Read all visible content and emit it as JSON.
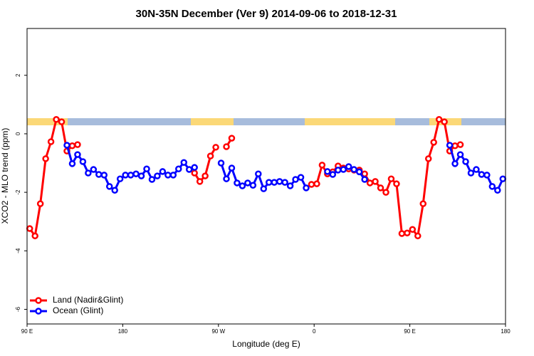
{
  "chart_data": {
    "type": "line",
    "title": "30N-35N December (Ver 9)   2014-09-06 to 2018-12-31",
    "x_label": "Longitude (deg E)",
    "y_label": "XCO2 - MLO trend (ppm)",
    "x": [
      92.5,
      97.5,
      102.5,
      107.5,
      112.5,
      117.5,
      122.5,
      127.5,
      132.5,
      137.5,
      142.5,
      147.5,
      152.5,
      157.5,
      162.5,
      167.5,
      172.5,
      177.5,
      182.5,
      187.5,
      192.5,
      197.5,
      202.5,
      207.5,
      212.5,
      217.5,
      222.5,
      227.5,
      232.5,
      237.5,
      242.5,
      247.5,
      252.5,
      257.5,
      262.5,
      267.5,
      272.5,
      277.5,
      282.5,
      287.5,
      292.5,
      297.5,
      302.5,
      307.5,
      312.5,
      317.5,
      322.5,
      327.5,
      332.5,
      337.5,
      342.5,
      347.5,
      352.5,
      357.5,
      362.5,
      367.5,
      372.5,
      377.5,
      382.5,
      387.5,
      392.5,
      397.5,
      402.5,
      407.5,
      412.5,
      417.5,
      422.5,
      427.5,
      432.5,
      437.5,
      442.5,
      447.5,
      452.5,
      457.5,
      462.5,
      467.5,
      472.5,
      477.5,
      482.5,
      487.5,
      492.5,
      497.5,
      502.5,
      507.5,
      512.5,
      517.5,
      522.5,
      527.5,
      532.5,
      537.5
    ],
    "series": [
      {
        "name": "Land (Nadir&Glint)",
        "color": "#ff0000",
        "values": [
          -3.24,
          -3.49,
          -2.39,
          -0.85,
          -0.27,
          0.49,
          0.41,
          -0.59,
          -0.41,
          -0.37,
          null,
          null,
          null,
          null,
          null,
          null,
          null,
          null,
          null,
          null,
          null,
          null,
          null,
          null,
          null,
          null,
          null,
          null,
          null,
          null,
          null,
          -1.34,
          -1.63,
          -1.44,
          -0.76,
          -0.46,
          null,
          -0.44,
          -0.15,
          null,
          null,
          null,
          null,
          null,
          null,
          null,
          null,
          null,
          null,
          null,
          null,
          null,
          null,
          -1.73,
          -1.71,
          -1.07,
          -1.37,
          -1.3,
          -1.1,
          -1.17,
          -1.2,
          -1.24,
          -1.24,
          -1.37,
          -1.68,
          -1.63,
          -1.85,
          -2.0,
          -1.54,
          -1.71,
          -3.41,
          -3.39,
          -3.27,
          -3.49,
          -2.39,
          -0.85,
          -0.29,
          0.49,
          0.41,
          -0.59,
          -0.41,
          -0.37,
          null,
          null,
          null,
          null,
          null,
          null,
          null,
          null
        ]
      },
      {
        "name": "Ocean (Glint)",
        "color": "#0000ff",
        "values": [
          null,
          null,
          null,
          null,
          null,
          null,
          null,
          -0.39,
          -1.02,
          -0.71,
          -0.95,
          -1.34,
          -1.22,
          -1.39,
          -1.41,
          -1.8,
          -1.93,
          -1.54,
          -1.41,
          -1.41,
          -1.37,
          -1.44,
          -1.2,
          -1.56,
          -1.44,
          -1.29,
          -1.41,
          -1.41,
          -1.2,
          -0.98,
          -1.22,
          -1.15,
          null,
          null,
          null,
          null,
          -1.0,
          -1.54,
          -1.17,
          -1.68,
          -1.78,
          -1.68,
          -1.76,
          -1.37,
          -1.88,
          -1.66,
          -1.66,
          -1.63,
          -1.66,
          -1.78,
          -1.56,
          -1.49,
          -1.85,
          null,
          null,
          null,
          -1.29,
          -1.39,
          -1.24,
          -1.22,
          -1.12,
          -1.22,
          -1.3,
          -1.56,
          null,
          null,
          null,
          null,
          null,
          null,
          null,
          null,
          null,
          null,
          null,
          null,
          null,
          null,
          null,
          -0.39,
          -1.02,
          -0.71,
          -0.95,
          -1.34,
          -1.22,
          -1.39,
          -1.41,
          -1.8,
          -1.93,
          -1.54
        ]
      }
    ],
    "xlim": [
      90,
      540
    ],
    "ylim": [
      -6.5,
      3.6
    ],
    "xticks": [
      {
        "value": 90,
        "label": "90 E"
      },
      180,
      {
        "value": 270,
        "label": "90 W"
      },
      {
        "value": 360,
        "label": "0"
      },
      {
        "value": 450,
        "label": "90 E"
      },
      {
        "value": 540,
        "label": "180"
      }
    ],
    "yticks": [
      -6,
      -4,
      -2,
      0,
      2
    ],
    "legend": "bottomleft"
  }
}
